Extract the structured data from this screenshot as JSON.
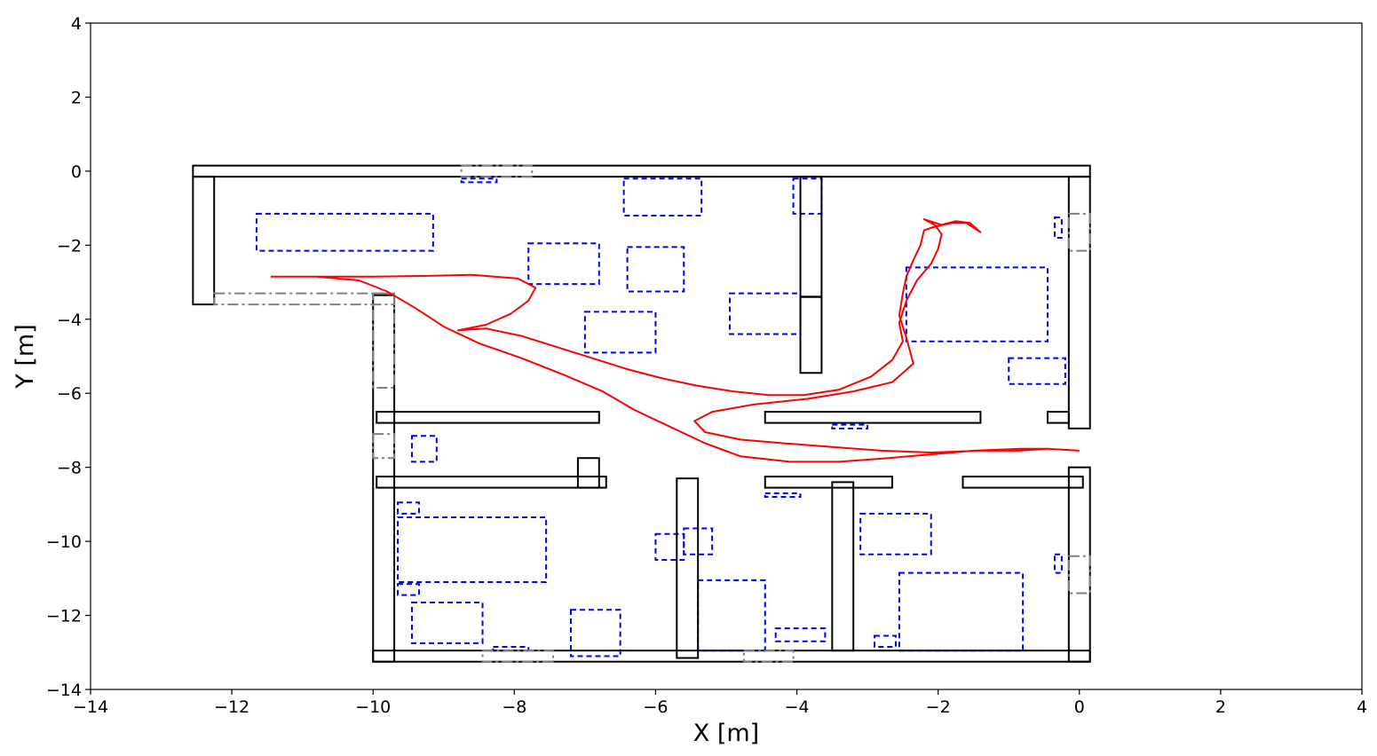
{
  "chart_data": {
    "type": "line",
    "title": "",
    "xlabel": "X [m]",
    "ylabel": "Y [m]",
    "xlim": [
      -14,
      4
    ],
    "ylim": [
      -14,
      4
    ],
    "grid": false,
    "x_ticks": [
      -14,
      -12,
      -10,
      -8,
      -6,
      -4,
      -2,
      0,
      2,
      4
    ],
    "y_ticks": [
      4,
      2,
      0,
      -2,
      -4,
      -6,
      -8,
      -10,
      -12,
      -14
    ],
    "tick_labels_x": [
      "−14",
      "−12",
      "−10",
      "−8",
      "−6",
      "−4",
      "−2",
      "0",
      "2",
      "4"
    ],
    "tick_labels_y": [
      "4",
      "2",
      "0",
      "−2",
      "−4",
      "−6",
      "−8",
      "−10",
      "−12",
      "−14"
    ],
    "colors": {
      "walls": "#000000",
      "doors": "#808080",
      "furniture": "#0000ff",
      "trajectory": "#ff0000"
    },
    "walls": [
      [
        -12.55,
        -0.15,
        12.7,
        0.3
      ],
      [
        -12.55,
        -3.6,
        0.3,
        3.45
      ],
      [
        -10.0,
        -13.25,
        0.3,
        9.9
      ],
      [
        -10.0,
        -13.25,
        10.15,
        0.3
      ],
      [
        -0.15,
        -13.25,
        0.3,
        5.25
      ],
      [
        -0.15,
        -6.95,
        0.3,
        6.8
      ],
      [
        -3.95,
        -5.45,
        0.3,
        5.3
      ],
      [
        -5.7,
        -13.15,
        0.3,
        4.85
      ],
      [
        -3.5,
        -12.95,
        0.3,
        4.55
      ],
      [
        -9.95,
        -6.8,
        3.15,
        0.3
      ],
      [
        -4.45,
        -6.8,
        3.05,
        0.3
      ],
      [
        -0.45,
        -6.8,
        0.3,
        0.3
      ],
      [
        -9.95,
        -8.55,
        3.25,
        0.3
      ],
      [
        -7.1,
        -8.55,
        0.3,
        0.8
      ],
      [
        -4.45,
        -8.55,
        1.8,
        0.3
      ],
      [
        -1.65,
        -8.55,
        1.7,
        0.3
      ],
      [
        -3.95,
        -3.4,
        0.3,
        0.01
      ]
    ],
    "doors": [
      [
        -8.75,
        -0.15,
        1.0,
        0.3
      ],
      [
        -12.25,
        -3.6,
        2.55,
        0.3
      ],
      [
        -10.0,
        -5.85,
        0.3,
        2.55
      ],
      [
        -10.0,
        -7.75,
        0.3,
        0.65
      ],
      [
        -8.45,
        -13.25,
        1.0,
        0.3
      ],
      [
        -4.75,
        -13.25,
        0.7,
        0.3
      ],
      [
        -0.15,
        -2.15,
        0.3,
        1.0
      ],
      [
        -0.15,
        -11.4,
        0.3,
        1.0
      ]
    ],
    "furniture": [
      [
        -11.65,
        -2.15,
        2.5,
        1.0
      ],
      [
        -8.75,
        -0.3,
        0.5,
        0.1
      ],
      [
        -6.45,
        -1.2,
        1.1,
        1.0
      ],
      [
        -4.05,
        -1.15,
        0.4,
        0.95
      ],
      [
        -7.8,
        -3.05,
        1.0,
        1.1
      ],
      [
        -6.4,
        -3.25,
        0.8,
        1.2
      ],
      [
        -7.0,
        -4.9,
        1.0,
        1.1
      ],
      [
        -4.95,
        -4.4,
        1.0,
        1.1
      ],
      [
        -2.45,
        -4.6,
        2.0,
        2.0
      ],
      [
        -0.35,
        -1.8,
        0.1,
        0.55
      ],
      [
        -1.0,
        -5.75,
        0.8,
        0.7
      ],
      [
        -3.5,
        -6.95,
        0.5,
        0.1
      ],
      [
        -9.45,
        -7.85,
        0.35,
        0.7
      ],
      [
        -9.65,
        -9.25,
        0.3,
        0.3
      ],
      [
        -9.65,
        -11.1,
        2.1,
        1.75
      ],
      [
        -9.65,
        -11.45,
        0.3,
        0.3
      ],
      [
        -9.45,
        -12.75,
        1.0,
        1.1
      ],
      [
        -6.0,
        -10.5,
        0.4,
        0.7
      ],
      [
        -5.6,
        -10.35,
        0.4,
        0.7
      ],
      [
        -5.4,
        -12.95,
        0.95,
        1.9
      ],
      [
        -8.3,
        -12.95,
        0.5,
        0.1
      ],
      [
        -7.2,
        -13.1,
        0.7,
        1.25
      ],
      [
        -4.3,
        -12.7,
        0.7,
        0.35
      ],
      [
        -4.45,
        -8.8,
        0.5,
        0.1
      ],
      [
        -3.1,
        -10.35,
        1.0,
        1.1
      ],
      [
        -2.9,
        -12.85,
        0.3,
        0.3
      ],
      [
        -2.55,
        -12.95,
        1.75,
        2.1
      ],
      [
        -0.35,
        -10.85,
        0.1,
        0.5
      ]
    ],
    "trajectory": [
      [
        -11.45,
        -2.85
      ],
      [
        -10.6,
        -2.85
      ],
      [
        -10.0,
        -2.85
      ],
      [
        -9.3,
        -2.83
      ],
      [
        -8.6,
        -2.8
      ],
      [
        -7.95,
        -2.9
      ],
      [
        -7.7,
        -3.15
      ],
      [
        -7.8,
        -3.5
      ],
      [
        -8.05,
        -3.85
      ],
      [
        -8.4,
        -4.15
      ],
      [
        -8.8,
        -4.3
      ],
      [
        -8.4,
        -4.25
      ],
      [
        -7.9,
        -4.45
      ],
      [
        -7.4,
        -4.75
      ],
      [
        -6.9,
        -5.05
      ],
      [
        -6.4,
        -5.35
      ],
      [
        -5.9,
        -5.6
      ],
      [
        -5.4,
        -5.8
      ],
      [
        -4.9,
        -5.95
      ],
      [
        -4.4,
        -6.05
      ],
      [
        -3.9,
        -6.05
      ],
      [
        -3.4,
        -5.9
      ],
      [
        -2.95,
        -5.55
      ],
      [
        -2.65,
        -5.1
      ],
      [
        -2.5,
        -4.6
      ],
      [
        -2.55,
        -4.1
      ],
      [
        -2.45,
        -3.5
      ],
      [
        -2.3,
        -2.95
      ],
      [
        -2.1,
        -2.5
      ],
      [
        -2.0,
        -2.1
      ],
      [
        -1.95,
        -1.7
      ],
      [
        -2.05,
        -1.45
      ],
      [
        -2.2,
        -1.3
      ],
      [
        -1.95,
        -1.45
      ],
      [
        -1.75,
        -1.35
      ],
      [
        -1.55,
        -1.4
      ],
      [
        -1.4,
        -1.65
      ],
      [
        -1.6,
        -1.4
      ],
      [
        -1.8,
        -1.4
      ],
      [
        -2.05,
        -1.5
      ],
      [
        -2.2,
        -1.6
      ],
      [
        -2.25,
        -2.0
      ],
      [
        -2.35,
        -2.4
      ],
      [
        -2.45,
        -2.85
      ],
      [
        -2.5,
        -3.3
      ],
      [
        -2.55,
        -3.9
      ],
      [
        -2.45,
        -4.5
      ],
      [
        -2.35,
        -5.2
      ],
      [
        -2.65,
        -5.7
      ],
      [
        -3.2,
        -5.95
      ],
      [
        -3.85,
        -6.15
      ],
      [
        -4.6,
        -6.3
      ],
      [
        -5.2,
        -6.5
      ],
      [
        -5.45,
        -6.75
      ],
      [
        -5.3,
        -7.05
      ],
      [
        -4.8,
        -7.25
      ],
      [
        -4.2,
        -7.35
      ],
      [
        -3.5,
        -7.45
      ],
      [
        -2.8,
        -7.55
      ],
      [
        -2.1,
        -7.6
      ],
      [
        -1.4,
        -7.55
      ],
      [
        -0.85,
        -7.55
      ],
      [
        -0.45,
        -7.5
      ],
      [
        -0.85,
        -7.5
      ],
      [
        -1.5,
        -7.55
      ],
      [
        -2.1,
        -7.65
      ],
      [
        -2.7,
        -7.75
      ],
      [
        -3.4,
        -7.85
      ],
      [
        -4.1,
        -7.85
      ],
      [
        -4.8,
        -7.7
      ],
      [
        -5.3,
        -7.35
      ],
      [
        -5.8,
        -6.9
      ],
      [
        -6.3,
        -6.45
      ],
      [
        -6.75,
        -5.95
      ],
      [
        -7.3,
        -5.5
      ],
      [
        -7.9,
        -5.05
      ],
      [
        -8.5,
        -4.65
      ],
      [
        -9.0,
        -4.2
      ],
      [
        -9.4,
        -3.7
      ],
      [
        -9.8,
        -3.25
      ],
      [
        -10.2,
        -2.95
      ],
      [
        -10.8,
        -2.85
      ],
      [
        -11.45,
        -2.85
      ]
    ],
    "trajectory_end": [
      0.0,
      -7.55
    ]
  }
}
